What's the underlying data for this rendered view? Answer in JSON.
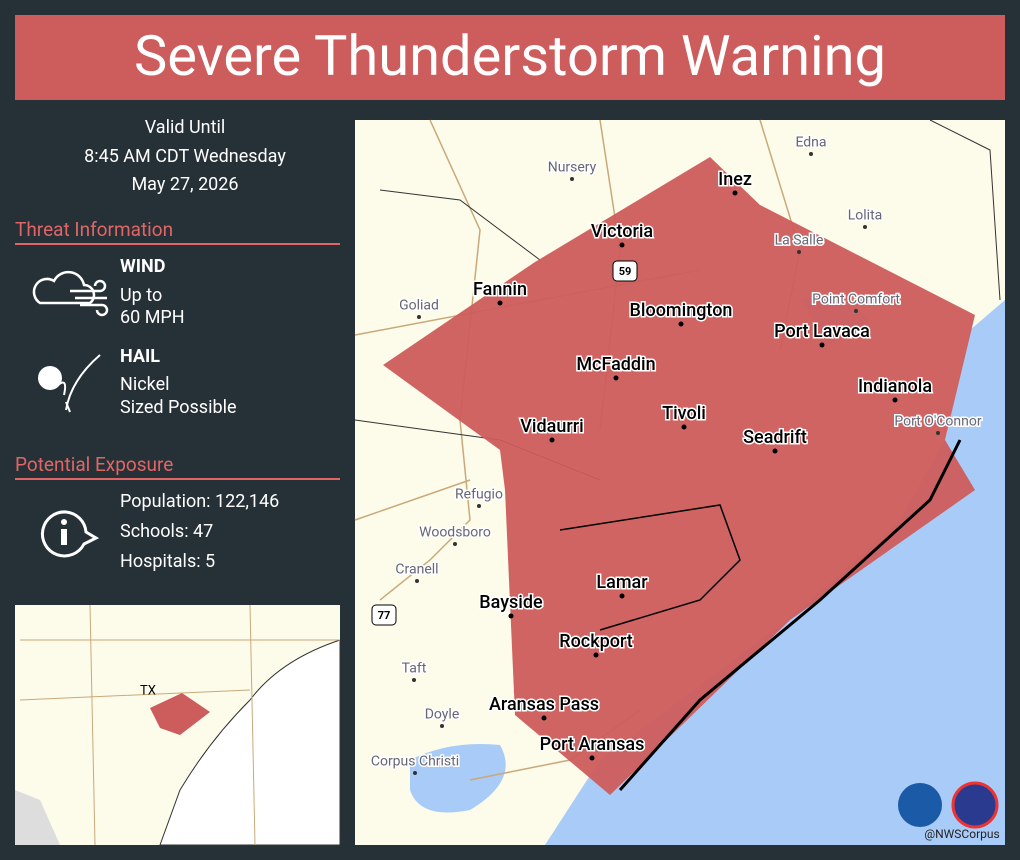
{
  "header": {
    "title": "Severe Thunderstorm Warning"
  },
  "valid": {
    "label": "Valid Until",
    "time": "8:45 AM CDT Wednesday",
    "date": "May 27, 2026"
  },
  "threat": {
    "heading": "Threat Information",
    "wind": {
      "title": "WIND",
      "line1": "Up to",
      "line2": "60  MPH"
    },
    "hail": {
      "title": "HAIL",
      "line1": "Nickel",
      "line2": "Sized Possible"
    }
  },
  "exposure": {
    "heading": "Potential Exposure",
    "population": "Population: 122,146",
    "schools": "Schools: 47",
    "hospitals": "Hospitals: 5"
  },
  "map": {
    "major_places": [
      "Inez",
      "Victoria",
      "Fannin",
      "Bloomington",
      "Port Lavaca",
      "McFaddin",
      "Indianola",
      "Vidaurri",
      "Tivoli",
      "Seadrift",
      "Lamar",
      "Bayside",
      "Rockport",
      "Aransas Pass",
      "Port Aransas"
    ],
    "minor_places": [
      "Edna",
      "Nursery",
      "Lolita",
      "La Salle",
      "Goliad",
      "Point Comfort",
      "Port O'Connor",
      "Refugio",
      "Woodsboro",
      "Cranell",
      "Taft",
      "Doyle",
      "Corpus Christi"
    ],
    "shields": [
      "59",
      "77"
    ],
    "credit": "@NWSCorpus"
  },
  "inset": {
    "label": "TX"
  }
}
